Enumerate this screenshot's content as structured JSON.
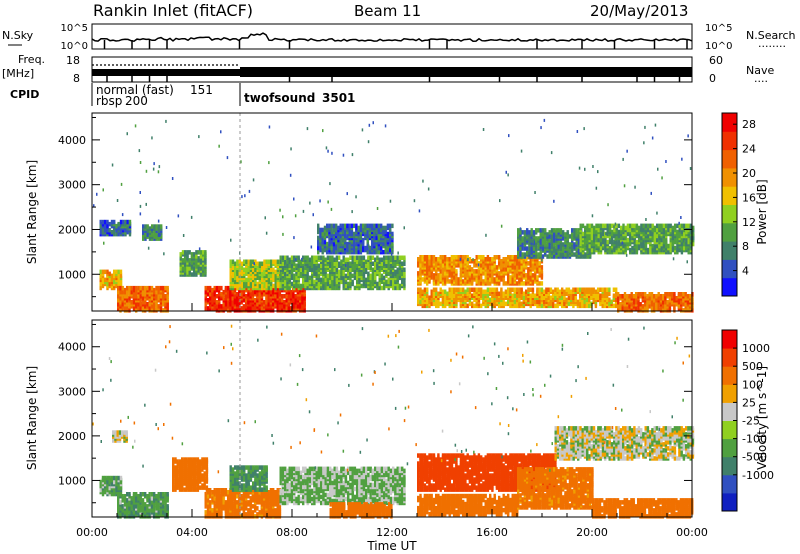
{
  "header": {
    "station": "Rankin Inlet (fitACF)",
    "beam": "Beam 11",
    "date": "20/May/2013"
  },
  "noise_panel": {
    "left_label": "N.Sky",
    "left_ticks": [
      "10^5",
      "10^0"
    ],
    "right_ticks": [
      "10^5",
      "10^0"
    ],
    "right_label": "N.Search",
    "right_dash": "........"
  },
  "freq_panel": {
    "left_label_1": "Freq.",
    "left_label_2": "[MHz]",
    "left_ticks": [
      "18",
      "8"
    ],
    "right_ticks": [
      "60",
      "0"
    ],
    "right_label": "Nave",
    "right_dash": "...."
  },
  "cpid_panel": {
    "label": "CPID",
    "modes": [
      {
        "name": "normal (fast)",
        "id": "151"
      },
      {
        "name": "rbsp",
        "id": "200"
      },
      {
        "name": "twofsound",
        "id": "3501"
      }
    ]
  },
  "x_axis": {
    "label": "Time UT",
    "ticks": [
      "00:00",
      "04:00",
      "08:00",
      "12:00",
      "16:00",
      "20:00",
      "00:00"
    ]
  },
  "y_axis": {
    "label": "Slant Range [km]",
    "ticks": [
      "1000",
      "2000",
      "3000",
      "4000"
    ]
  },
  "power_colorbar": {
    "label": "Power [dB]",
    "ticks": [
      "4",
      "8",
      "12",
      "16",
      "20",
      "24",
      "28"
    ],
    "colors": [
      "#1010ff",
      "#3050c0",
      "#40806a",
      "#50a040",
      "#90d020",
      "#f0c000",
      "#f09000",
      "#f06000",
      "#f03000",
      "#f00000"
    ]
  },
  "velocity_colorbar": {
    "label": "Velocity [m s^-1]",
    "ticks": [
      "1000",
      "500",
      "100",
      "25",
      "-25",
      "-100",
      "-500",
      "-1000"
    ],
    "colors": [
      "#1020c0",
      "#3050c0",
      "#40806a",
      "#50a040",
      "#90d020",
      "#c8c8c8",
      "#f0a000",
      "#f07000",
      "#f04000",
      "#f00000"
    ]
  },
  "chart_data": [
    {
      "type": "heatmap",
      "title": "Power",
      "xlabel": "Time UT",
      "ylabel": "Slant Range [km]",
      "xlim_hours": [
        0,
        24
      ],
      "ylim_km": [
        180,
        4600
      ],
      "colorbar_label": "Power [dB]",
      "colorbar_range": [
        0,
        30
      ],
      "regions": [
        {
          "t_start": 0.3,
          "t_end": 1.2,
          "r_low": 700,
          "r_high": 1100,
          "value": 18
        },
        {
          "t_start": 0.3,
          "t_end": 1.5,
          "r_low": 1900,
          "r_high": 2200,
          "value": 6
        },
        {
          "t_start": 1.0,
          "t_end": 3.0,
          "r_low": 200,
          "r_high": 700,
          "value": 22
        },
        {
          "t_start": 2.0,
          "t_end": 2.8,
          "r_low": 1800,
          "r_high": 2100,
          "value": 8
        },
        {
          "t_start": 3.5,
          "t_end": 4.5,
          "r_low": 1000,
          "r_high": 1500,
          "value": 10
        },
        {
          "t_start": 4.5,
          "t_end": 8.5,
          "r_low": 200,
          "r_high": 700,
          "value": 26
        },
        {
          "t_start": 5.5,
          "t_end": 7.5,
          "r_low": 700,
          "r_high": 1300,
          "value": 14
        },
        {
          "t_start": 7.5,
          "t_end": 12.5,
          "r_low": 700,
          "r_high": 1400,
          "value": 10
        },
        {
          "t_start": 9.0,
          "t_end": 12.0,
          "r_low": 1500,
          "r_high": 2100,
          "value": 6
        },
        {
          "t_start": 13.0,
          "t_end": 18.0,
          "r_low": 800,
          "r_high": 1400,
          "value": 20
        },
        {
          "t_start": 13.0,
          "t_end": 21.0,
          "r_low": 300,
          "r_high": 700,
          "value": 18
        },
        {
          "t_start": 17.0,
          "t_end": 20.0,
          "r_low": 1400,
          "r_high": 2000,
          "value": 8
        },
        {
          "t_start": 19.5,
          "t_end": 24.0,
          "r_low": 1500,
          "r_high": 2100,
          "value": 10
        },
        {
          "t_start": 21.0,
          "t_end": 24.0,
          "r_low": 200,
          "r_high": 600,
          "value": 22
        }
      ]
    },
    {
      "type": "heatmap",
      "title": "Velocity",
      "xlabel": "Time UT",
      "ylabel": "Slant Range [km]",
      "xlim_hours": [
        0,
        24
      ],
      "ylim_km": [
        180,
        4600
      ],
      "colorbar_label": "Velocity [m s^-1]",
      "colorbar_range": [
        -1000,
        1000
      ],
      "regions": [
        {
          "t_start": 0.3,
          "t_end": 1.2,
          "r_low": 700,
          "r_high": 1100,
          "value": 60
        },
        {
          "t_start": 0.8,
          "t_end": 1.4,
          "r_low": 1900,
          "r_high": 2100,
          "value": 0
        },
        {
          "t_start": 1.0,
          "t_end": 3.0,
          "r_low": 200,
          "r_high": 700,
          "value": 80
        },
        {
          "t_start": 3.2,
          "t_end": 4.6,
          "r_low": 800,
          "r_high": 1500,
          "value": -200
        },
        {
          "t_start": 4.5,
          "t_end": 7.5,
          "r_low": 200,
          "r_high": 800,
          "value": -150
        },
        {
          "t_start": 5.5,
          "t_end": 7.0,
          "r_low": 800,
          "r_high": 1300,
          "value": 90
        },
        {
          "t_start": 7.5,
          "t_end": 12.5,
          "r_low": 500,
          "r_high": 1300,
          "value": 40
        },
        {
          "t_start": 9.5,
          "t_end": 12.0,
          "r_low": 200,
          "r_high": 500,
          "value": -200
        },
        {
          "t_start": 13.0,
          "t_end": 18.5,
          "r_low": 800,
          "r_high": 1600,
          "value": -600
        },
        {
          "t_start": 13.0,
          "t_end": 17.0,
          "r_low": 250,
          "r_high": 700,
          "value": -400
        },
        {
          "t_start": 17.0,
          "t_end": 20.0,
          "r_low": 400,
          "r_high": 1300,
          "value": -150
        },
        {
          "t_start": 18.5,
          "t_end": 24.0,
          "r_low": 1500,
          "r_high": 2200,
          "value": 0
        },
        {
          "t_start": 20.0,
          "t_end": 24.0,
          "r_low": 200,
          "r_high": 600,
          "value": -300
        }
      ]
    }
  ]
}
